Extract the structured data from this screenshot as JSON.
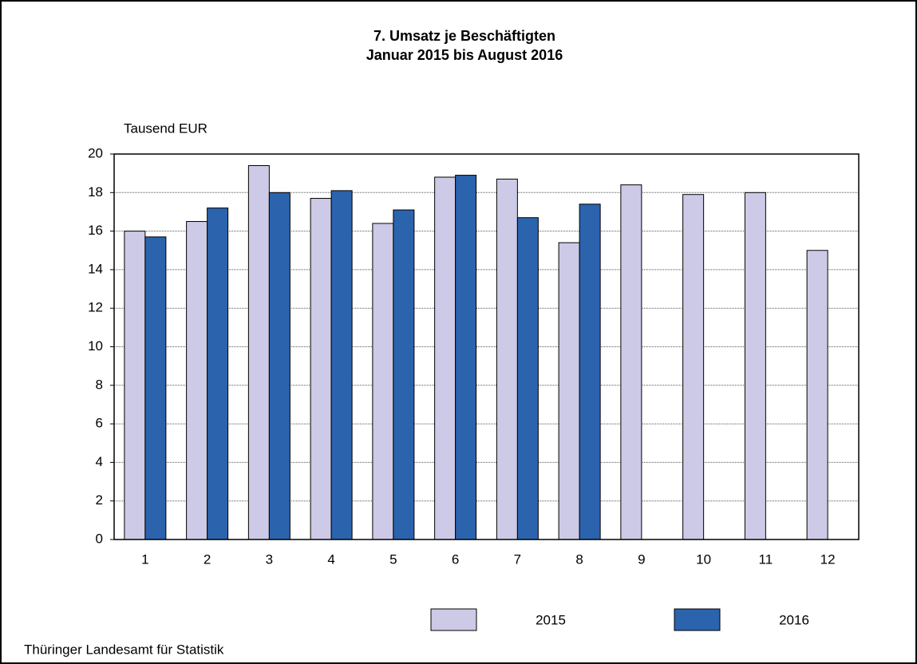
{
  "chart_data": {
    "type": "bar",
    "title": "7. Umsatz je Beschäftigten",
    "subtitle": "Januar 2015 bis August 2016",
    "y_label": "Tausend EUR",
    "source": "Thüringer Landesamt für Statistik",
    "categories": [
      "1",
      "2",
      "3",
      "4",
      "5",
      "6",
      "7",
      "8",
      "9",
      "10",
      "11",
      "12"
    ],
    "series": [
      {
        "name": "2015",
        "color": "#cccae6",
        "values": [
          16.0,
          16.5,
          19.4,
          17.7,
          16.4,
          18.8,
          18.7,
          15.4,
          18.4,
          17.9,
          18.0,
          15.0
        ]
      },
      {
        "name": "2016",
        "color": "#2b63ad",
        "values": [
          15.7,
          17.2,
          18.0,
          18.1,
          17.1,
          18.9,
          16.7,
          17.4,
          null,
          null,
          null,
          null
        ]
      }
    ],
    "ylim": [
      0,
      20
    ],
    "yticks": [
      0,
      2,
      4,
      6,
      8,
      10,
      12,
      14,
      16,
      18,
      20
    ],
    "grid": true
  }
}
